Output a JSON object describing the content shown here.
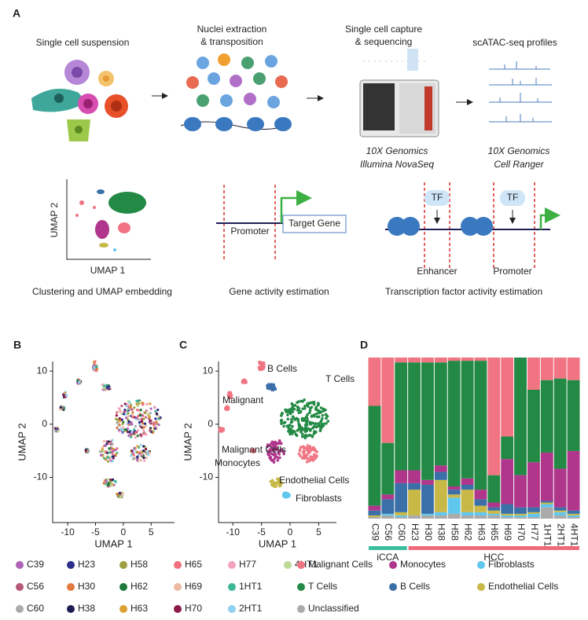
{
  "panel_a": {
    "label": "A",
    "suspension": "Single cell suspension",
    "extraction": [
      "Nuclei extraction",
      "& transposition"
    ],
    "capture": [
      "Single cell capture",
      "& sequencing"
    ],
    "profiles": "scATAC-seq profiles",
    "platform_seq": [
      "10X Genomics",
      "Illumina NovaSeq"
    ],
    "platform_ranger": [
      "10X Genomics",
      "Cell Ranger"
    ],
    "umap_y": "UMAP 2",
    "umap_x": "UMAP 1",
    "clustering": "Clustering and UMAP embedding",
    "promoter": "Promoter",
    "target_gene": "Target Gene",
    "gene_activity": "Gene activity estimation",
    "tf": [
      "TF",
      "TF"
    ],
    "enhancer": "Enhancer",
    "promoter2": "Promoter",
    "tf_activity": "Transcription factor activity estimation"
  },
  "chart_data": [
    {
      "type": "scatter",
      "panel": "B",
      "xlabel": "UMAP 1",
      "ylabel": "UMAP 2",
      "xlim": [
        -12.7,
        9.2
      ],
      "ylim": [
        -18.5,
        11.8
      ],
      "xticks": [
        -10,
        -5,
        0,
        5
      ],
      "yticks": [
        -10,
        0,
        10
      ],
      "series": [
        {
          "name": "C39",
          "color": "#b062b8"
        },
        {
          "name": "C56",
          "color": "#b85878"
        },
        {
          "name": "C60",
          "color": "#aaaaaa"
        },
        {
          "name": "H23",
          "color": "#2e2e8c"
        },
        {
          "name": "H30",
          "color": "#e07a3e"
        },
        {
          "name": "H38",
          "color": "#1e1e55"
        },
        {
          "name": "H58",
          "color": "#9ca040"
        },
        {
          "name": "H62",
          "color": "#1f7a3a"
        },
        {
          "name": "H63",
          "color": "#d9a132"
        },
        {
          "name": "H65",
          "color": "#f07080"
        },
        {
          "name": "H69",
          "color": "#ecb9a2"
        },
        {
          "name": "H70",
          "color": "#8b1a4a"
        },
        {
          "name": "H77",
          "color": "#f4a2c2"
        },
        {
          "name": "1HT1",
          "color": "#3db897"
        },
        {
          "name": "2HT1",
          "color": "#8fd1f2"
        },
        {
          "name": "4HT1",
          "color": "#bcd995"
        }
      ]
    },
    {
      "type": "scatter",
      "panel": "C",
      "xlabel": "UMAP 1",
      "ylabel": "UMAP 2",
      "xlim": [
        -12.5,
        8.1
      ],
      "ylim": [
        -18.5,
        11.8
      ],
      "xticks": [
        -10,
        -5,
        0,
        5
      ],
      "yticks": [
        -10,
        0,
        10
      ],
      "annotations": [
        "B Cells",
        "T Cells",
        "Malignant",
        "Malignant Cells",
        "Monocytes",
        "Endothelial Cells",
        "Fibroblasts"
      ]
    },
    {
      "type": "bar",
      "panel": "D",
      "stacked": true,
      "ylim": [
        0,
        100
      ],
      "categories": [
        "C39",
        "C56",
        "C60",
        "H23",
        "H30",
        "H38",
        "H58",
        "H62",
        "H63",
        "H65",
        "H69",
        "H70",
        "H77",
        "1HT1",
        "2HT1",
        "4HT1"
      ],
      "groups": [
        {
          "name": "iCCA",
          "color": "#3dbf9f",
          "members": [
            "C39",
            "C56",
            "C60"
          ]
        },
        {
          "name": "HCC",
          "color": "#ef6b7b",
          "members": [
            "H23",
            "H30",
            "H38",
            "H58",
            "H62",
            "H63",
            "H65",
            "H69",
            "H70",
            "H77",
            "1HT1",
            "2HT1",
            "4HT1"
          ]
        }
      ],
      "series": [
        {
          "name": "Unclassified",
          "color": "#aaaaaa",
          "values": [
            1,
            2,
            1,
            2,
            2,
            2,
            3,
            2,
            2,
            2,
            1,
            1,
            1,
            7,
            2,
            1
          ]
        },
        {
          "name": "Fibroblasts",
          "color": "#5fc6ee",
          "values": [
            0,
            1,
            1,
            0,
            1,
            2,
            10,
            2,
            2,
            1,
            1,
            1,
            2,
            2,
            2,
            1
          ]
        },
        {
          "name": "Endothelial Cells",
          "color": "#c8b846",
          "values": [
            1,
            0,
            2,
            16,
            0,
            20,
            2,
            14,
            4,
            2,
            1,
            1,
            1,
            1,
            1,
            1
          ]
        },
        {
          "name": "B Cells",
          "color": "#3a6fa8",
          "values": [
            3,
            9,
            18,
            4,
            18,
            5,
            3,
            3,
            4,
            2,
            6,
            4,
            3,
            1,
            2,
            2
          ]
        },
        {
          "name": "Monocytes",
          "color": "#b0368c",
          "values": [
            3,
            3,
            8,
            8,
            3,
            4,
            2,
            4,
            6,
            3,
            28,
            20,
            28,
            30,
            24,
            37
          ]
        },
        {
          "name": "T Cells",
          "color": "#238a45",
          "values": [
            62,
            32,
            67,
            67,
            73,
            64,
            78,
            73,
            80,
            17,
            14,
            73,
            45,
            45,
            56,
            44
          ]
        },
        {
          "name": "Malignant Cells",
          "color": "#f07482",
          "values": [
            30,
            53,
            3,
            3,
            3,
            3,
            2,
            2,
            2,
            73,
            49,
            0,
            20,
            14,
            13,
            14
          ]
        }
      ]
    }
  ]
}
